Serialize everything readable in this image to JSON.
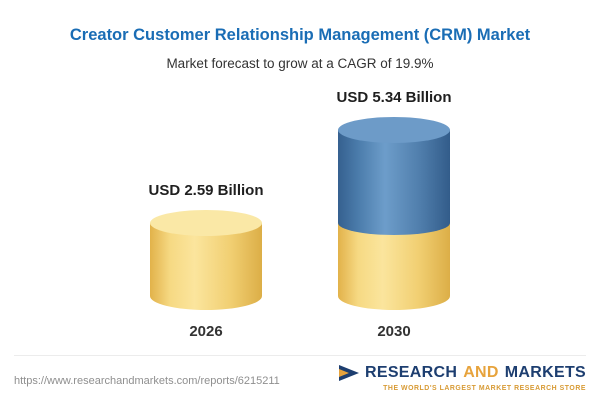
{
  "header": {
    "title": "Creator Customer Relationship Management (CRM) Market",
    "subtitle": "Market forecast to grow at a CAGR of 19.9%"
  },
  "chart_data": {
    "type": "bar",
    "subtype": "3d-cylinder",
    "categories": [
      "2026",
      "2030"
    ],
    "values": [
      2.59,
      5.34
    ],
    "value_labels": [
      "USD 2.59 Billion",
      "USD 5.34 Billion"
    ],
    "unit": "USD Billion",
    "cagr_pct": 19.9,
    "title": "Creator Customer Relationship Management (CRM) Market",
    "subtitle": "Market forecast to grow at a CAGR of 19.9%",
    "xlabel": "",
    "ylabel": "",
    "ylim": [
      0,
      5.34
    ],
    "grid": false,
    "legend": false,
    "bar_segments": [
      [
        {
          "color": "#F3D078",
          "value": 2.59
        }
      ],
      [
        {
          "color": "#F3D078",
          "value": 2.59
        },
        {
          "color": "#4C7CAF",
          "value": 2.75
        }
      ]
    ],
    "colors": {
      "yellow_body": "#F3D078",
      "yellow_cap": "#FAE8A6",
      "blue_body": "#4C7CAF",
      "blue_cap": "#6D9BC8"
    }
  },
  "footer": {
    "url": "https://www.researchandmarkets.com/reports/6215211",
    "logo": {
      "research": "RESEARCH",
      "and": "AND",
      "markets": "MARKETS",
      "tagline": "THE WORLD'S LARGEST MARKET RESEARCH STORE"
    }
  },
  "colors": {
    "title_blue": "#1A6DB5",
    "logo_navy": "#1D3E70",
    "logo_gold": "#E7A33C"
  }
}
